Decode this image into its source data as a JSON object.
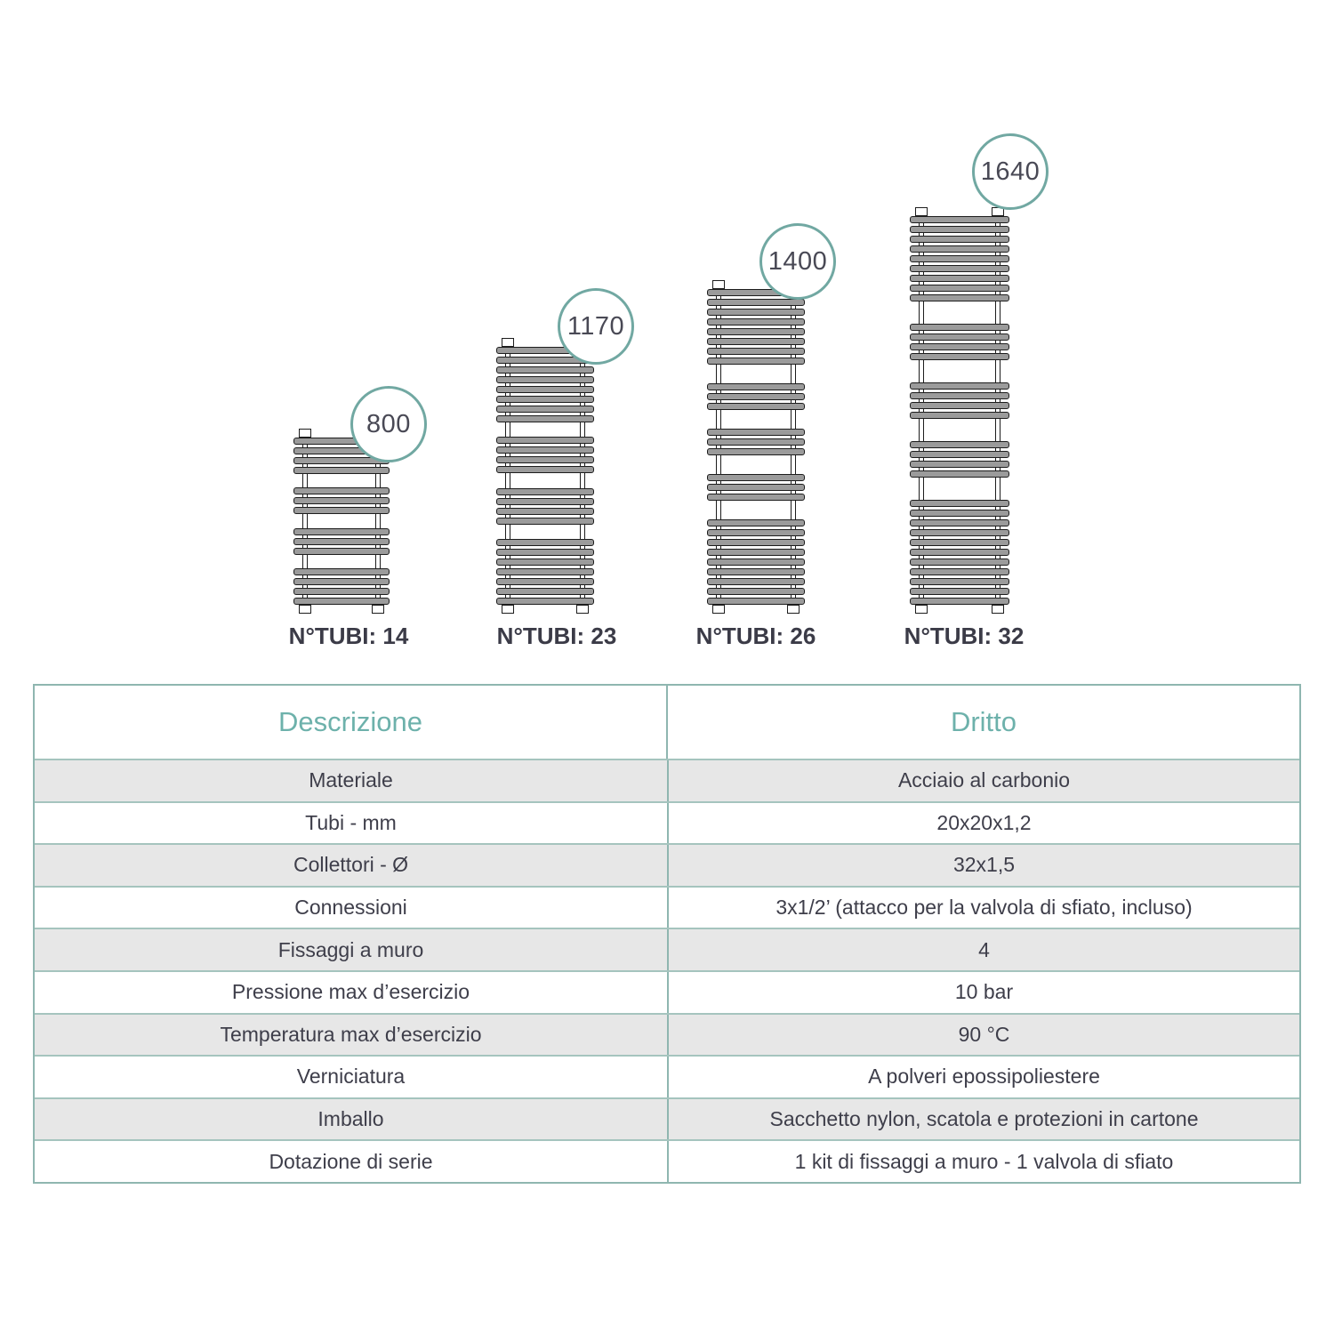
{
  "diagram": {
    "radiators": [
      {
        "height_mm": "800",
        "tubes_label": "N°TUBI: 14",
        "tube_count": 14,
        "tube_groups": [
          4,
          3,
          3,
          4
        ]
      },
      {
        "height_mm": "1170",
        "tubes_label": "N°TUBI: 23",
        "tube_count": 23,
        "tube_groups": [
          8,
          4,
          4,
          7
        ]
      },
      {
        "height_mm": "1400",
        "tubes_label": "N°TUBI: 26",
        "tube_count": 26,
        "tube_groups": [
          8,
          3,
          3,
          3,
          9
        ]
      },
      {
        "height_mm": "1640",
        "tubes_label": "N°TUBI: 32",
        "tube_count": 32,
        "tube_groups": [
          9,
          4,
          4,
          4,
          11
        ]
      }
    ]
  },
  "table": {
    "columns": [
      "Descrizione",
      "Dritto"
    ],
    "rows": [
      {
        "label": "Materiale",
        "value": "Acciaio al carbonio"
      },
      {
        "label": "Tubi - mm",
        "value": "20x20x1,2"
      },
      {
        "label": "Collettori - Ø",
        "value": "32x1,5"
      },
      {
        "label": "Connessioni",
        "value": "3x1/2’ (attacco per la valvola di sfiato, incluso)"
      },
      {
        "label": "Fissaggi a muro",
        "value": "4"
      },
      {
        "label": "Pressione max d’esercizio",
        "value": "10 bar"
      },
      {
        "label": "Temperatura max d’esercizio",
        "value": "90 °C"
      },
      {
        "label": "Verniciatura",
        "value": "A polveri epossipoliestere"
      },
      {
        "label": "Imballo",
        "value": "Sacchetto nylon, scatola e protezioni in cartone"
      },
      {
        "label": "Dotazione di serie",
        "value": "1 kit di fissaggi a muro - 1 valvola di sfiato"
      }
    ]
  },
  "colors": {
    "accent_teal": "#71A8A2",
    "table_border": "#8FB6B0",
    "row_separator": "#A5C4BE",
    "header_text": "#6DB1AB",
    "dark_text": "#3E3E4A",
    "badge_text": "#494955",
    "tube_fill": "#9B9B9B",
    "tube_outline": "#1D1D1D",
    "row_alt_bg": "#E7E7E7"
  }
}
